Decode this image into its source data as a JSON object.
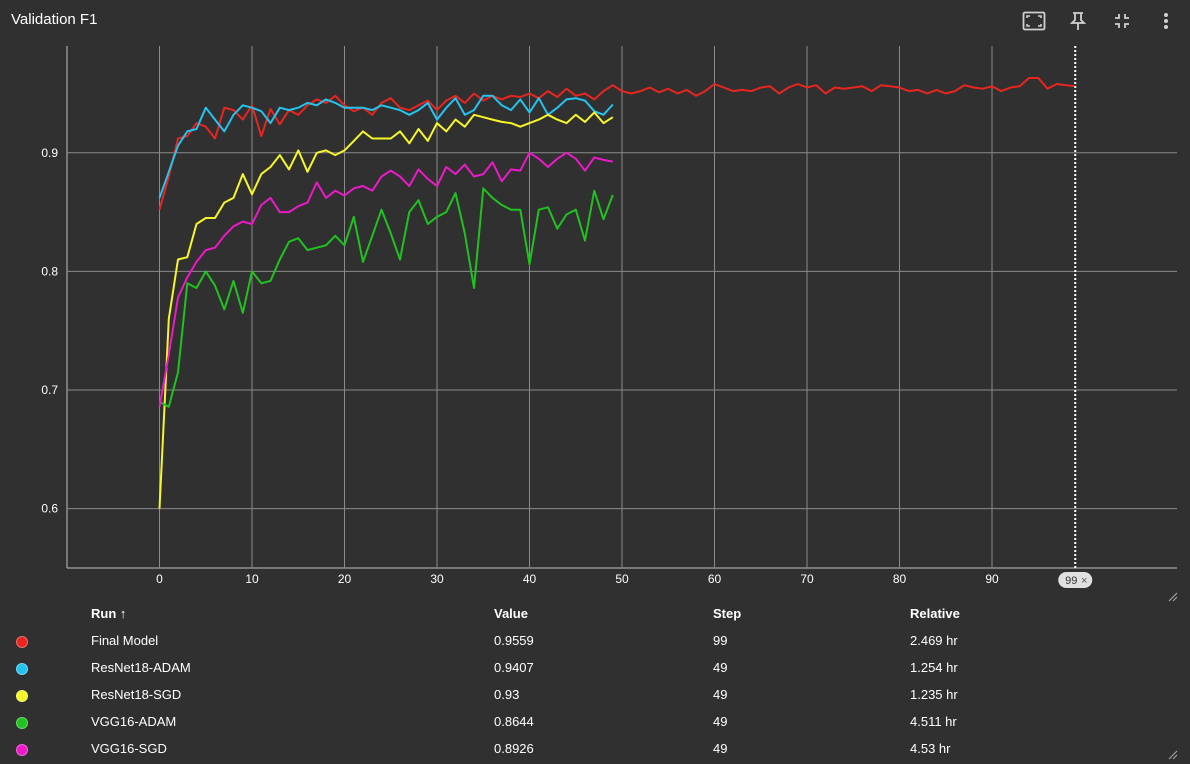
{
  "card": {
    "title": "Validation F1"
  },
  "toolbar": [
    {
      "name": "fit-domain-button",
      "icon": "fit-domain-icon"
    },
    {
      "name": "pin-button",
      "icon": "pin-icon"
    },
    {
      "name": "collapse-button",
      "icon": "collapse-icon"
    },
    {
      "name": "more-menu-button",
      "icon": "more-vert-icon"
    }
  ],
  "colors": {
    "background": "#303030",
    "grid": "#8a8a8a",
    "axis": "#c0c0c0"
  },
  "chart_data": {
    "type": "line",
    "title": "Validation F1",
    "xlabel": "",
    "ylabel": "",
    "xlim": [
      -10,
      110
    ],
    "ylim": [
      0.55,
      0.99
    ],
    "xticks": [
      0,
      10,
      20,
      30,
      40,
      50,
      60,
      70,
      80,
      90
    ],
    "yticks": [
      0.6,
      0.7,
      0.8,
      0.9
    ],
    "grid": true,
    "cursor_step": 99,
    "cursor_label": "99",
    "series": [
      {
        "name": "Final Model",
        "color": "#e8251f",
        "values": [
          0.852,
          0.88,
          0.912,
          0.914,
          0.925,
          0.922,
          0.912,
          0.938,
          0.936,
          0.928,
          0.94,
          0.914,
          0.937,
          0.924,
          0.936,
          0.932,
          0.94,
          0.945,
          0.942,
          0.948,
          0.94,
          0.935,
          0.938,
          0.932,
          0.942,
          0.946,
          0.938,
          0.936,
          0.94,
          0.944,
          0.936,
          0.944,
          0.948,
          0.942,
          0.95,
          0.944,
          0.948,
          0.945,
          0.948,
          0.947,
          0.95,
          0.946,
          0.952,
          0.947,
          0.954,
          0.948,
          0.95,
          0.945,
          0.952,
          0.957,
          0.952,
          0.95,
          0.952,
          0.955,
          0.951,
          0.954,
          0.95,
          0.953,
          0.948,
          0.952,
          0.958,
          0.955,
          0.952,
          0.953,
          0.952,
          0.955,
          0.956,
          0.95,
          0.955,
          0.958,
          0.955,
          0.957,
          0.95,
          0.955,
          0.954,
          0.955,
          0.956,
          0.952,
          0.957,
          0.956,
          0.955,
          0.952,
          0.953,
          0.95,
          0.953,
          0.95,
          0.952,
          0.957,
          0.955,
          0.954,
          0.956,
          0.952,
          0.955,
          0.956,
          0.963,
          0.963,
          0.954,
          0.958,
          0.957,
          0.956
        ]
      },
      {
        "name": "ResNet18-ADAM",
        "color": "#23c4ee",
        "values": [
          0.862,
          0.884,
          0.906,
          0.918,
          0.92,
          0.938,
          0.928,
          0.918,
          0.932,
          0.94,
          0.938,
          0.935,
          0.925,
          0.938,
          0.936,
          0.938,
          0.942,
          0.94,
          0.945,
          0.942,
          0.938,
          0.938,
          0.938,
          0.936,
          0.94,
          0.938,
          0.936,
          0.932,
          0.936,
          0.942,
          0.928,
          0.938,
          0.946,
          0.932,
          0.936,
          0.948,
          0.948,
          0.94,
          0.936,
          0.945,
          0.934,
          0.946,
          0.932,
          0.938,
          0.945,
          0.946,
          0.944,
          0.935,
          0.932,
          0.9407
        ]
      },
      {
        "name": "ResNet18-SGD",
        "color": "#f6f629",
        "values": [
          0.6,
          0.76,
          0.81,
          0.812,
          0.84,
          0.845,
          0.845,
          0.858,
          0.862,
          0.882,
          0.865,
          0.882,
          0.888,
          0.898,
          0.886,
          0.902,
          0.884,
          0.9,
          0.902,
          0.898,
          0.902,
          0.91,
          0.918,
          0.912,
          0.912,
          0.912,
          0.918,
          0.908,
          0.92,
          0.91,
          0.925,
          0.918,
          0.928,
          0.922,
          0.932,
          0.93,
          0.928,
          0.926,
          0.925,
          0.922,
          0.925,
          0.928,
          0.932,
          0.928,
          0.925,
          0.932,
          0.926,
          0.934,
          0.925,
          0.93
        ]
      },
      {
        "name": "VGG16-ADAM",
        "color": "#1fc21f",
        "values": [
          0.69,
          0.686,
          0.715,
          0.79,
          0.786,
          0.8,
          0.788,
          0.768,
          0.792,
          0.765,
          0.8,
          0.79,
          0.792,
          0.81,
          0.825,
          0.828,
          0.818,
          0.82,
          0.822,
          0.83,
          0.822,
          0.846,
          0.808,
          0.83,
          0.852,
          0.832,
          0.81,
          0.85,
          0.86,
          0.84,
          0.846,
          0.85,
          0.866,
          0.832,
          0.786,
          0.87,
          0.862,
          0.856,
          0.852,
          0.852,
          0.806,
          0.852,
          0.854,
          0.836,
          0.848,
          0.852,
          0.826,
          0.868,
          0.844,
          0.8644
        ]
      },
      {
        "name": "VGG16-SGD",
        "color": "#ec19c8",
        "values": [
          0.686,
          0.73,
          0.778,
          0.795,
          0.808,
          0.818,
          0.82,
          0.83,
          0.838,
          0.842,
          0.84,
          0.856,
          0.862,
          0.85,
          0.85,
          0.855,
          0.858,
          0.875,
          0.862,
          0.868,
          0.864,
          0.87,
          0.872,
          0.868,
          0.88,
          0.885,
          0.88,
          0.872,
          0.886,
          0.878,
          0.872,
          0.888,
          0.882,
          0.89,
          0.88,
          0.882,
          0.892,
          0.876,
          0.886,
          0.885,
          0.9,
          0.895,
          0.888,
          0.895,
          0.9,
          0.895,
          0.885,
          0.896,
          0.894,
          0.8926
        ]
      }
    ]
  },
  "table": {
    "headers": {
      "run": "Run ↑",
      "value": "Value",
      "step": "Step",
      "relative": "Relative"
    },
    "rows": [
      {
        "color": "#e8251f",
        "run": "Final Model",
        "value": "0.9559",
        "step": "99",
        "relative": "2.469 hr"
      },
      {
        "color": "#23c4ee",
        "run": "ResNet18-ADAM",
        "value": "0.9407",
        "step": "49",
        "relative": "1.254 hr"
      },
      {
        "color": "#f6f629",
        "run": "ResNet18-SGD",
        "value": "0.93",
        "step": "49",
        "relative": "1.235 hr"
      },
      {
        "color": "#1fc21f",
        "run": "VGG16-ADAM",
        "value": "0.8644",
        "step": "49",
        "relative": "4.511 hr"
      },
      {
        "color": "#ec19c8",
        "run": "VGG16-SGD",
        "value": "0.8926",
        "step": "49",
        "relative": "4.53 hr"
      }
    ]
  }
}
